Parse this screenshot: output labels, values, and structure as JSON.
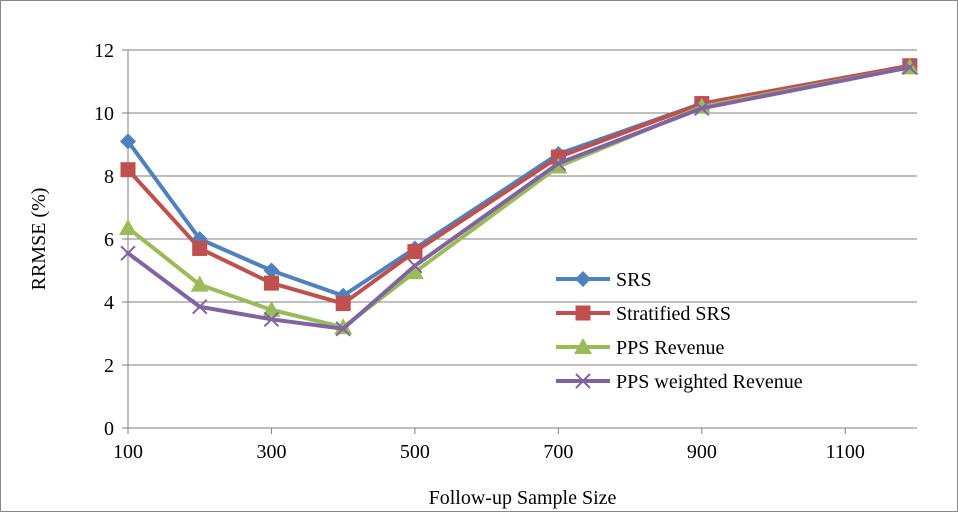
{
  "chart_data": {
    "type": "line",
    "title": "",
    "xlabel": "Follow-up Sample Size",
    "ylabel": "RRMSE (%)",
    "xlim": [
      100,
      1200
    ],
    "ylim": [
      0,
      12
    ],
    "x_ticks": [
      100,
      300,
      500,
      700,
      900,
      1100
    ],
    "y_ticks": [
      0,
      2,
      4,
      6,
      8,
      10,
      12
    ],
    "grid": "horizontal",
    "legend_position": "lower-right",
    "x": [
      100,
      200,
      300,
      400,
      500,
      700,
      900,
      1190
    ],
    "series": [
      {
        "name": "SRS",
        "color": "#4f81bd",
        "marker": "diamond",
        "values": [
          9.1,
          6.0,
          5.0,
          4.2,
          5.7,
          8.7,
          10.3,
          11.5
        ]
      },
      {
        "name": "Stratified SRS",
        "color": "#c0504d",
        "marker": "square",
        "values": [
          8.2,
          5.7,
          4.6,
          3.95,
          5.6,
          8.6,
          10.3,
          11.5
        ]
      },
      {
        "name": "PPS Revenue",
        "color": "#9bbb59",
        "marker": "triangle",
        "values": [
          6.35,
          4.55,
          3.75,
          3.2,
          4.95,
          8.3,
          10.2,
          11.45
        ]
      },
      {
        "name": "PPS weighted Revenue",
        "color": "#8064a2",
        "marker": "x",
        "values": [
          5.55,
          3.85,
          3.45,
          3.15,
          5.15,
          8.4,
          10.15,
          11.45
        ]
      }
    ]
  }
}
